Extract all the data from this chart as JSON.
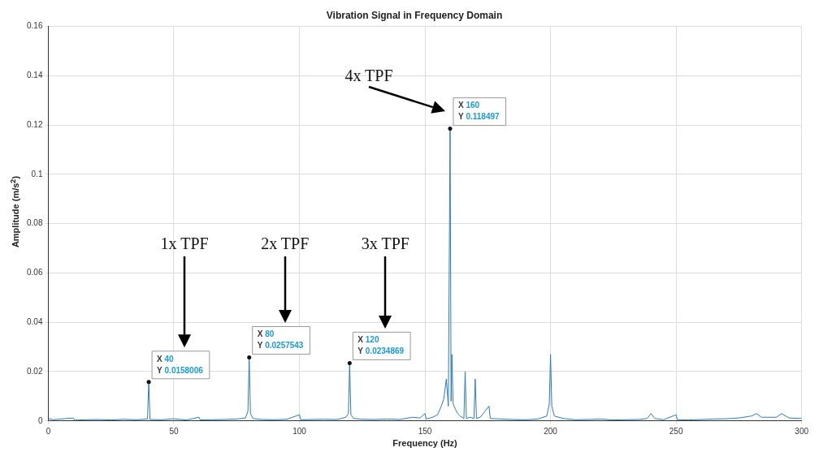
{
  "chart_data": {
    "type": "line",
    "title": "Vibration Signal in Frequency Domain",
    "xlabel": "Frequency (Hz)",
    "ylabel": "Amplitude (m/s$^{2}$)",
    "xlim": [
      0,
      300
    ],
    "xticks": [
      0,
      50,
      100,
      150,
      200,
      250,
      300
    ],
    "ylim": [
      0,
      0.16
    ],
    "yticks": [
      0,
      0.02,
      0.04,
      0.06,
      0.08,
      0.1,
      0.12,
      0.14,
      0.16
    ],
    "grid": true,
    "legend": false,
    "marker": "none",
    "line_style": "solid",
    "series": [
      {
        "color": "#2b7bba",
        "x": [
          0,
          2,
          5,
          10,
          10.5,
          15,
          20,
          25,
          30,
          35,
          39.5,
          40,
          40.5,
          45,
          50,
          55,
          60,
          60.5,
          65,
          70,
          75,
          78.5,
          79.5,
          80,
          80.5,
          81.5,
          85,
          90,
          95,
          100,
          100.5,
          105,
          110,
          115,
          118.5,
          119.5,
          120,
          120.5,
          121.5,
          125,
          130,
          135,
          140,
          145,
          148,
          150,
          150.5,
          153,
          155,
          156.5,
          157.5,
          158.5,
          159.3,
          160,
          160.4,
          160.7,
          161.2,
          162,
          163,
          164,
          165.5,
          166,
          166.5,
          168,
          169.5,
          170,
          170.5,
          172,
          175.5,
          176,
          180,
          185,
          190,
          195,
          198.5,
          199.5,
          200,
          200.5,
          201.5,
          205,
          210,
          215,
          220,
          225,
          230,
          235,
          238.5,
          240,
          241.5,
          245,
          250,
          250.5,
          255,
          260,
          265,
          270,
          275,
          280,
          282,
          284,
          290,
          292,
          295,
          300
        ],
        "values": [
          0.001,
          0.0005,
          0.0008,
          0.0012,
          0.0003,
          0.0005,
          0.0006,
          0.0004,
          0.0007,
          0.0005,
          0.0008,
          0.0158006,
          0.0006,
          0.0005,
          0.0009,
          0.0004,
          0.0015,
          0.0004,
          0.0005,
          0.0006,
          0.0008,
          0.0012,
          0.004,
          0.0257543,
          0.003,
          0.001,
          0.0006,
          0.0005,
          0.0007,
          0.0025,
          0.0005,
          0.0006,
          0.0007,
          0.0006,
          0.0015,
          0.003,
          0.0234869,
          0.0025,
          0.001,
          0.0007,
          0.0006,
          0.0008,
          0.0006,
          0.0015,
          0.0012,
          0.003,
          0.0008,
          0.0015,
          0.0025,
          0.006,
          0.009,
          0.017,
          0.006,
          0.118497,
          0.008,
          0.027,
          0.007,
          0.005,
          0.003,
          0.002,
          0.001,
          0.02,
          0.001,
          0.0015,
          0.001,
          0.017,
          0.001,
          0.0015,
          0.006,
          0.001,
          0.0008,
          0.0006,
          0.0005,
          0.0008,
          0.002,
          0.007,
          0.027,
          0.006,
          0.002,
          0.001,
          0.0005,
          0.0006,
          0.0008,
          0.0004,
          0.0005,
          0.0006,
          0.001,
          0.003,
          0.001,
          0.0005,
          0.0025,
          0.0005,
          0.0004,
          0.0006,
          0.0008,
          0.0009,
          0.0012,
          0.002,
          0.003,
          0.0015,
          0.0015,
          0.003,
          0.0012,
          0.001
        ]
      }
    ],
    "annotations": [
      {
        "text": "X 40\nY 0.0158006",
        "x": 40,
        "y": 0.0158006
      },
      {
        "text": "X 80\nY 0.0257543",
        "x": 80,
        "y": 0.0257543
      },
      {
        "text": "X 120\nY 0.0234869",
        "x": 120,
        "y": 0.0234869
      },
      {
        "text": "X 160\nY 0.118497",
        "x": 160,
        "y": 0.118497
      },
      "1x TPF",
      "2x TPF",
      "3x TPF",
      "4x TPF"
    ]
  }
}
